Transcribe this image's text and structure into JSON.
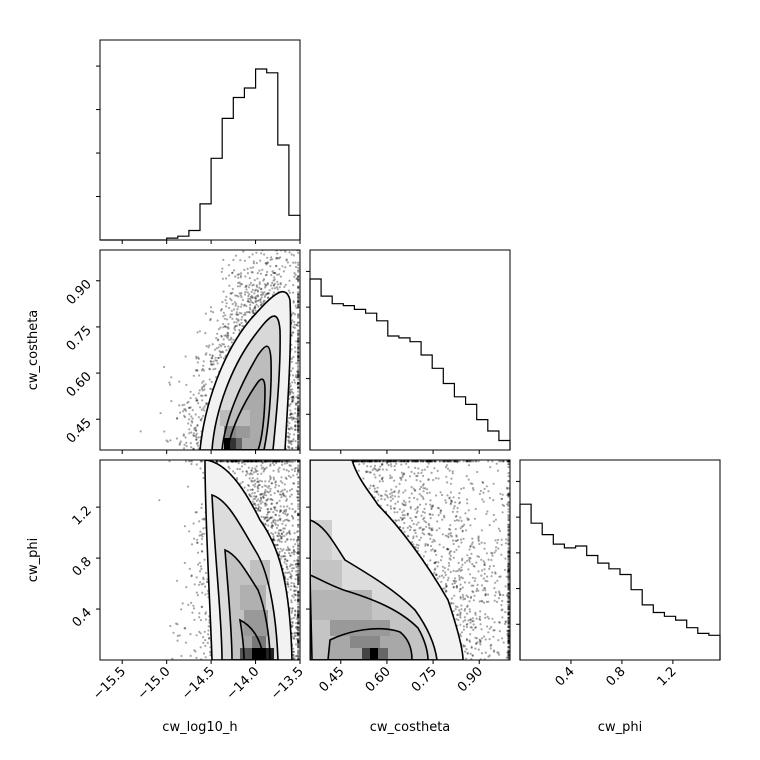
{
  "chart_data": [
    {
      "type": "histogram",
      "panel": "cw_log10_h marginal",
      "x_range": [
        -15.75,
        -13.5
      ],
      "bin_centers": [
        -15.688,
        -15.562,
        -15.438,
        -15.312,
        -15.188,
        -15.062,
        -14.938,
        -14.812,
        -14.688,
        -14.562,
        -14.438,
        -14.312,
        -14.188,
        -14.062,
        -13.938,
        -13.812,
        -13.688,
        -13.562
      ],
      "relative_heights": [
        0.0,
        0.0,
        0.0,
        0.0,
        0.0,
        0.0,
        0.01,
        0.02,
        0.05,
        0.19,
        0.43,
        0.64,
        0.75,
        0.8,
        0.9,
        0.88,
        0.5,
        0.13
      ]
    },
    {
      "type": "histogram",
      "panel": "cw_costheta marginal",
      "x_range": [
        0.35,
        1.0
      ],
      "bin_centers": [
        0.369,
        0.405,
        0.441,
        0.477,
        0.513,
        0.549,
        0.585,
        0.621,
        0.657,
        0.693,
        0.729,
        0.765,
        0.801,
        0.837,
        0.873,
        0.909,
        0.945,
        0.981
      ],
      "relative_heights": [
        0.9,
        0.81,
        0.77,
        0.76,
        0.74,
        0.72,
        0.68,
        0.6,
        0.59,
        0.57,
        0.5,
        0.43,
        0.35,
        0.28,
        0.24,
        0.16,
        0.1,
        0.05
      ]
    },
    {
      "type": "histogram",
      "panel": "cw_phi marginal",
      "x_range": [
        0.0,
        1.57
      ],
      "bin_centers": [
        0.044,
        0.131,
        0.218,
        0.305,
        0.392,
        0.48,
        0.567,
        0.654,
        0.741,
        0.828,
        0.916,
        1.003,
        1.09,
        1.177,
        1.264,
        1.352,
        1.439,
        1.526
      ],
      "relative_heights": [
        0.82,
        0.72,
        0.66,
        0.61,
        0.59,
        0.6,
        0.55,
        0.51,
        0.48,
        0.45,
        0.37,
        0.29,
        0.25,
        0.23,
        0.21,
        0.17,
        0.14,
        0.13
      ]
    },
    {
      "type": "heatmap",
      "panel": "cw_costheta vs cw_log10_h",
      "x_range": [
        -15.75,
        -13.5
      ],
      "y_range": [
        0.35,
        1.0
      ],
      "contour_levels": 4
    },
    {
      "type": "heatmap",
      "panel": "cw_phi vs cw_log10_h",
      "x_range": [
        -15.75,
        -13.5
      ],
      "y_range": [
        0.0,
        1.57
      ],
      "contour_levels": 4
    },
    {
      "type": "heatmap",
      "panel": "cw_phi vs cw_costheta",
      "x_range": [
        0.35,
        1.0
      ],
      "y_range": [
        0.0,
        1.57
      ],
      "contour_levels": 4
    }
  ],
  "axes": {
    "x_labels": [
      "cw_log10_h",
      "cw_costheta",
      "cw_phi"
    ],
    "y_labels": [
      "cw_costheta",
      "cw_phi"
    ],
    "log10_h_ticks": [
      "−15.5",
      "−15.0",
      "−14.5",
      "−14.0",
      "−13.5"
    ],
    "log10_h_tick_values": [
      -15.5,
      -15.0,
      -14.5,
      -14.0,
      -13.5
    ],
    "costheta_ticks": [
      "0.45",
      "0.60",
      "0.75",
      "0.90"
    ],
    "costheta_tick_values": [
      0.45,
      0.6,
      0.75,
      0.9
    ],
    "phi_ticks": [
      "0.4",
      "0.8",
      "1.2"
    ],
    "phi_tick_values": [
      0.4,
      0.8,
      1.2
    ]
  }
}
